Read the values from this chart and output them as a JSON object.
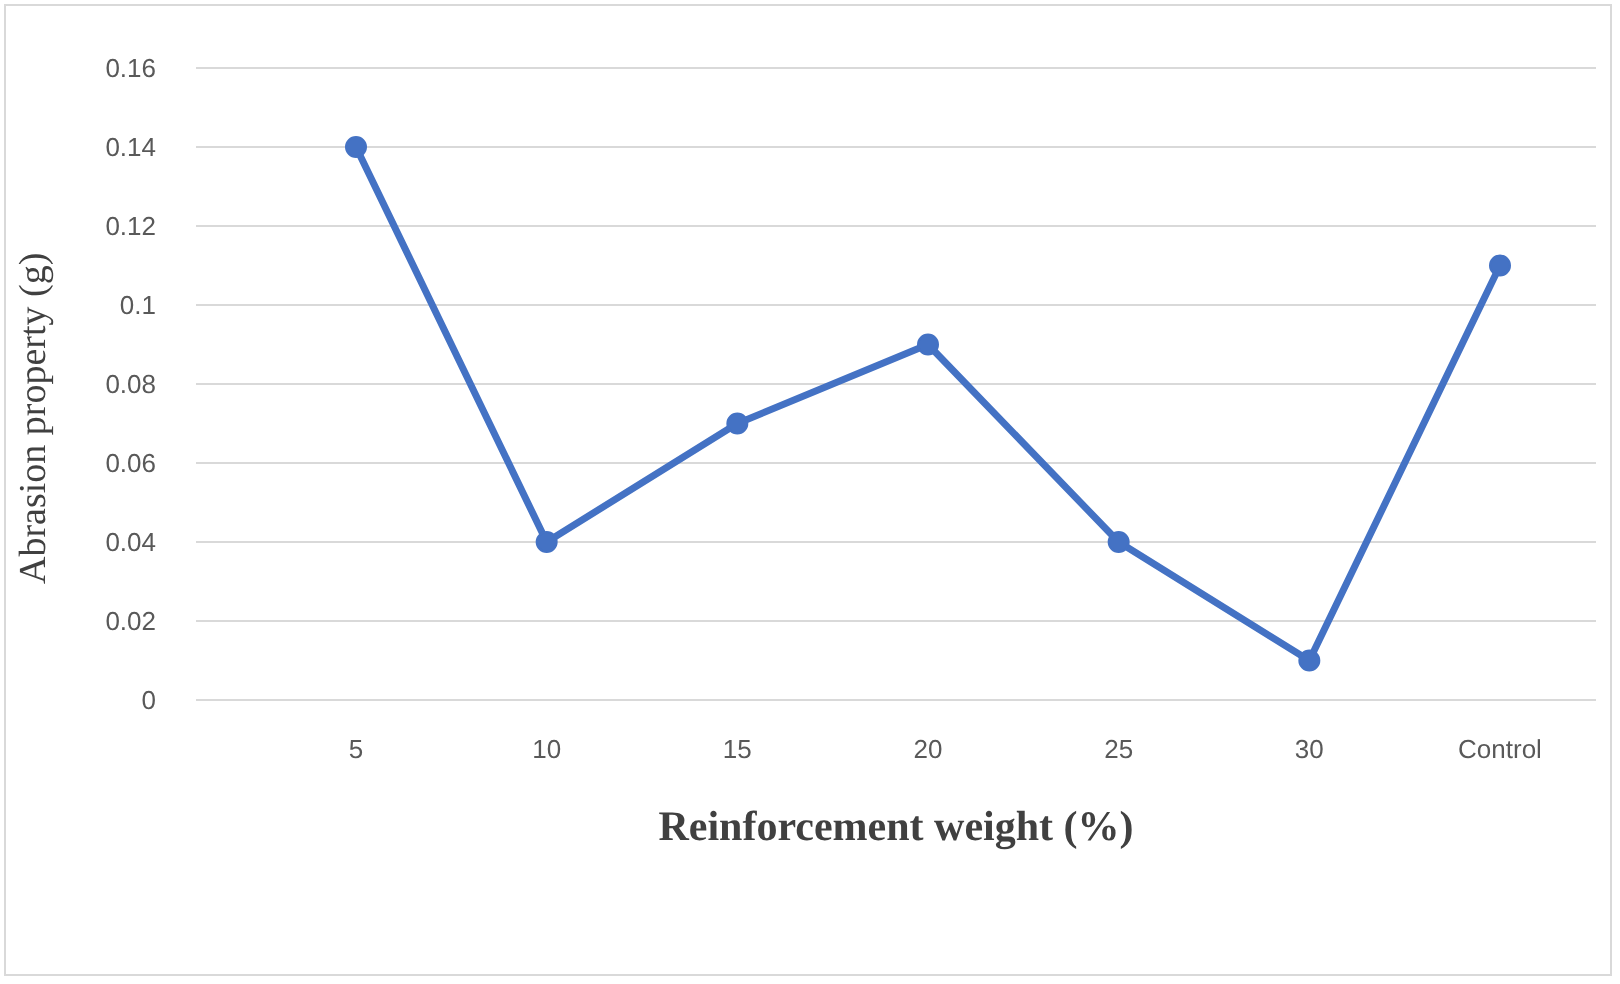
{
  "chart_data": {
    "type": "line",
    "xlabel": "Reinforcement weight (%)",
    "ylabel": "Abrasion property (g)",
    "categories": [
      "5",
      "10",
      "15",
      "20",
      "25",
      "30",
      "Control"
    ],
    "series": [
      {
        "color": "#4472c4",
        "values": [
          0.14,
          0.04,
          0.07,
          0.09,
          0.04,
          0.01,
          0.11
        ]
      }
    ],
    "ylim": [
      0,
      0.16
    ],
    "yticks": [
      0,
      0.02,
      0.04,
      0.06,
      0.08,
      0.1,
      0.12,
      0.14,
      0.16
    ],
    "grid": "y",
    "marker": "circle",
    "line_style": "solid",
    "legend": false
  }
}
